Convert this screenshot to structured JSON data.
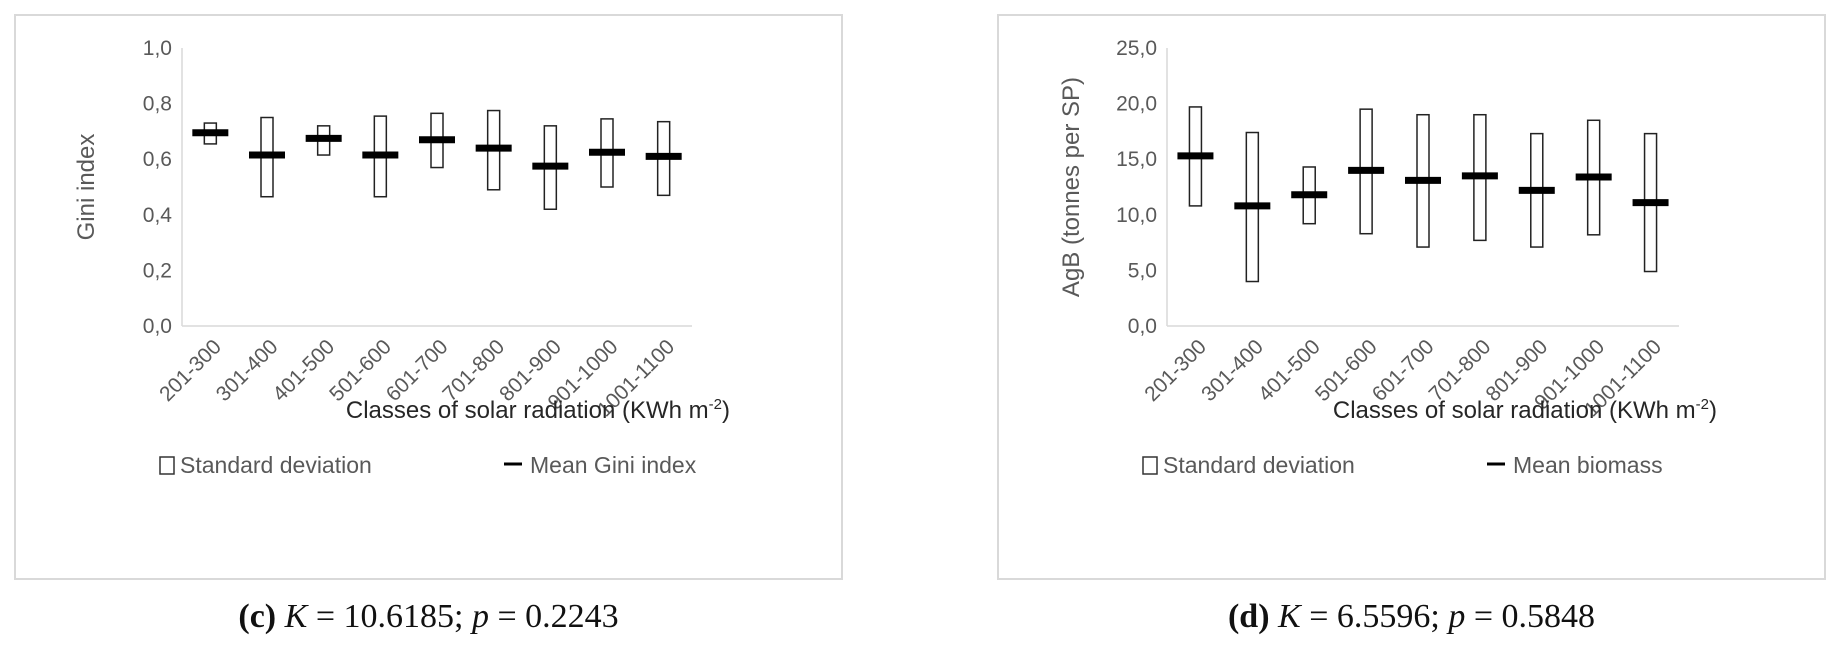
{
  "chart_data": [
    {
      "id": "c",
      "type": "box-range",
      "ylabel": "Gini index",
      "xlabel": "Classes of solar radiation (KWh m",
      "xlabel_sup": "-2",
      "xlabel_end": ")",
      "ylim": [
        0,
        1.0
      ],
      "yticks": [
        "0,0",
        "0,2",
        "0,4",
        "0,6",
        "0,8",
        "1,0"
      ],
      "categories": [
        "201-300",
        "301-400",
        "401-500",
        "501-600",
        "601-700",
        "701-800",
        "801-900",
        "901-1000",
        "1001-1100"
      ],
      "series": [
        {
          "name": "Mean Gini index",
          "values": [
            0.695,
            0.615,
            0.675,
            0.615,
            0.67,
            0.64,
            0.575,
            0.625,
            0.61
          ]
        },
        {
          "name": "Standard deviation low",
          "values": [
            0.655,
            0.465,
            0.615,
            0.465,
            0.57,
            0.49,
            0.42,
            0.5,
            0.47
          ]
        },
        {
          "name": "Standard deviation high",
          "values": [
            0.73,
            0.75,
            0.72,
            0.755,
            0.765,
            0.775,
            0.72,
            0.745,
            0.735
          ]
        }
      ],
      "legend": [
        "Standard deviation",
        "Mean Gini index"
      ],
      "legend_position": "bottom",
      "caption": {
        "label": "(c)",
        "stat_name": "K",
        "stat": " = 10.6185; ",
        "p_name": "p",
        "p_value": " = 0.2243"
      }
    },
    {
      "id": "d",
      "type": "box-range",
      "ylabel": "AgB (tonnes per SP)",
      "xlabel": "Classes of solar radiation (KWh m",
      "xlabel_sup": "-2",
      "xlabel_end": ")",
      "ylim": [
        0,
        25.0
      ],
      "yticks": [
        "0,0",
        "5,0",
        "10,0",
        "15,0",
        "20,0",
        "25,0"
      ],
      "categories": [
        "201-300",
        "301-400",
        "401-500",
        "501-600",
        "601-700",
        "701-800",
        "801-900",
        "901-1000",
        "1001-1100"
      ],
      "series": [
        {
          "name": "Mean biomass",
          "values": [
            15.3,
            10.8,
            11.8,
            14.0,
            13.1,
            13.5,
            12.2,
            13.4,
            11.1
          ]
        },
        {
          "name": "Standard deviation low",
          "values": [
            10.8,
            4.0,
            9.2,
            8.3,
            7.1,
            7.7,
            7.1,
            8.2,
            4.9
          ]
        },
        {
          "name": "Standard deviation high",
          "values": [
            19.7,
            17.4,
            14.3,
            19.5,
            19.0,
            19.0,
            17.3,
            18.5,
            17.3
          ]
        }
      ],
      "legend": [
        "Standard deviation",
        "Mean biomass"
      ],
      "legend_position": "bottom",
      "caption": {
        "label": "(d)",
        "stat_name": "K",
        "stat": " = 6.5596; ",
        "p_name": "p",
        "p_value": " = 0.5848"
      }
    }
  ]
}
